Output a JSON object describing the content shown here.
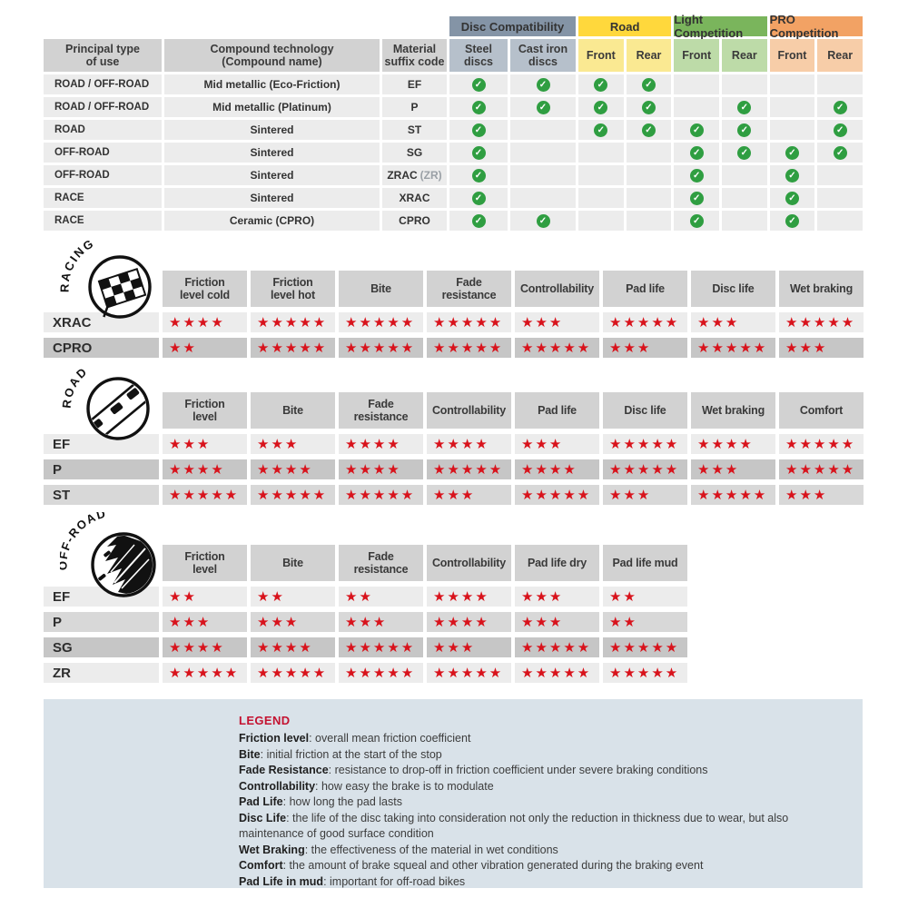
{
  "colors": {
    "header_gray": "#d2d2d2",
    "row_light": "#ececec",
    "row_medium": "#d8d8d8",
    "row_dark": "#c6c6c6",
    "check_green": "#2f9e41",
    "star_red": "#d8131c",
    "legend_bg": "#d9e2e9",
    "legend_title_red": "#c41230",
    "disc_group": "#8494a6",
    "disc_sub": "#b6c0cb",
    "road_group": "#ffd83c",
    "road_sub": "#fae992",
    "light_group": "#7ab55c",
    "light_sub": "#bddba8",
    "pro_group": "#f2a264",
    "pro_sub": "#f7cda8"
  },
  "compat_table": {
    "groups": [
      {
        "label": "Disc Compatibility",
        "span": 2,
        "color_key": "disc_group"
      },
      {
        "label": "Road",
        "span": 2,
        "color_key": "road_group"
      },
      {
        "label": "Light Competition",
        "span": 2,
        "color_key": "light_group"
      },
      {
        "label": "PRO Competition",
        "span": 2,
        "color_key": "pro_group"
      }
    ],
    "columns": [
      {
        "label": "Principal type\nof use"
      },
      {
        "label": "Compound technology\n(Compound name)"
      },
      {
        "label": "Material\nsuffix code"
      },
      {
        "label": "Steel\ndiscs",
        "tint": "disc_sub"
      },
      {
        "label": "Cast iron\ndiscs",
        "tint": "disc_sub"
      },
      {
        "label": "Front",
        "tint": "road_sub"
      },
      {
        "label": "Rear",
        "tint": "road_sub"
      },
      {
        "label": "Front",
        "tint": "light_sub"
      },
      {
        "label": "Rear",
        "tint": "light_sub"
      },
      {
        "label": "Front",
        "tint": "pro_sub"
      },
      {
        "label": "Rear",
        "tint": "pro_sub"
      }
    ],
    "rows": [
      {
        "use": "ROAD / OFF-ROAD",
        "compound": "Mid metallic (Eco-Friction)",
        "suffix": "EF",
        "suffix_note": "",
        "checks": [
          1,
          1,
          1,
          1,
          0,
          0,
          0,
          0
        ]
      },
      {
        "use": "ROAD / OFF-ROAD",
        "compound": "Mid metallic (Platinum)",
        "suffix": "P",
        "suffix_note": "",
        "checks": [
          1,
          1,
          1,
          1,
          0,
          1,
          0,
          1
        ]
      },
      {
        "use": "ROAD",
        "compound": "Sintered",
        "suffix": "ST",
        "suffix_note": "",
        "checks": [
          1,
          0,
          1,
          1,
          1,
          1,
          0,
          1
        ]
      },
      {
        "use": "OFF-ROAD",
        "compound": "Sintered",
        "suffix": "SG",
        "suffix_note": "",
        "checks": [
          1,
          0,
          0,
          0,
          1,
          1,
          1,
          1
        ]
      },
      {
        "use": "OFF-ROAD",
        "compound": "Sintered",
        "suffix": "ZRAC",
        "suffix_note": "(ZR)",
        "checks": [
          1,
          0,
          0,
          0,
          1,
          0,
          1,
          0
        ]
      },
      {
        "use": "RACE",
        "compound": "Sintered",
        "suffix": "XRAC",
        "suffix_note": "",
        "checks": [
          1,
          0,
          0,
          0,
          1,
          0,
          1,
          0
        ]
      },
      {
        "use": "RACE",
        "compound": "Ceramic (CPRO)",
        "suffix": "CPRO",
        "suffix_note": "",
        "checks": [
          1,
          1,
          0,
          0,
          1,
          0,
          1,
          0
        ]
      }
    ]
  },
  "sections": [
    {
      "id": "racing",
      "badge": "RACING",
      "icon": "racing-checkered-flag-icon",
      "columns": [
        "Friction\nlevel cold",
        "Friction\nlevel hot",
        "Bite",
        "Fade\nresistance",
        "Controllability",
        "Pad life",
        "Disc life",
        "Wet braking"
      ],
      "rows": [
        {
          "label": "XRAC",
          "shade": "light",
          "stars": [
            4,
            5,
            5,
            5,
            3,
            5,
            3,
            5
          ]
        },
        {
          "label": "CPRO",
          "shade": "dark",
          "stars": [
            2,
            5,
            5,
            5,
            5,
            3,
            5,
            3
          ]
        }
      ]
    },
    {
      "id": "road",
      "badge": "ROAD",
      "icon": "road-slick-tire-icon",
      "columns": [
        "Friction\nlevel",
        "Bite",
        "Fade\nresistance",
        "Controllability",
        "Pad life",
        "Disc life",
        "Wet braking",
        "Comfort"
      ],
      "rows": [
        {
          "label": "EF",
          "shade": "light",
          "stars": [
            3,
            3,
            4,
            4,
            3,
            5,
            4,
            5
          ]
        },
        {
          "label": "P",
          "shade": "dark",
          "stars": [
            4,
            4,
            4,
            5,
            4,
            5,
            3,
            5
          ]
        },
        {
          "label": "ST",
          "shade": "medium",
          "stars": [
            5,
            5,
            5,
            3,
            5,
            3,
            5,
            3
          ]
        }
      ]
    },
    {
      "id": "offroad",
      "badge": "OFF-ROAD",
      "icon": "offroad-knobby-tire-icon",
      "columns": [
        "Friction\nlevel",
        "Bite",
        "Fade\nresistance",
        "Controllability",
        "Pad life dry",
        "Pad life mud"
      ],
      "rows": [
        {
          "label": "EF",
          "shade": "light",
          "stars": [
            2,
            2,
            2,
            4,
            3,
            2
          ]
        },
        {
          "label": "P",
          "shade": "medium",
          "stars": [
            3,
            3,
            3,
            4,
            3,
            2
          ]
        },
        {
          "label": "SG",
          "shade": "dark",
          "stars": [
            4,
            4,
            5,
            3,
            5,
            5
          ]
        },
        {
          "label": "ZR",
          "shade": "light",
          "stars": [
            5,
            5,
            5,
            5,
            5,
            5
          ]
        }
      ]
    }
  ],
  "legend": {
    "title": "LEGEND",
    "items": [
      {
        "term": "Friction level",
        "desc": "overall mean friction coefficient"
      },
      {
        "term": "Bite",
        "desc": "initial friction at the start of the stop"
      },
      {
        "term": "Fade Resistance",
        "desc": "resistance to drop-off in friction coefficient under severe braking conditions"
      },
      {
        "term": "Controllability",
        "desc": "how easy the brake is to modulate"
      },
      {
        "term": "Pad Life",
        "desc": "how long the pad lasts"
      },
      {
        "term": "Disc Life",
        "desc": "the life of the disc taking into consideration not only the reduction in thickness due to wear, but also maintenance of good surface condition"
      },
      {
        "term": "Wet Braking",
        "desc": "the effectiveness of the material in wet conditions"
      },
      {
        "term": "Comfort",
        "desc": "the amount of brake squeal and other vibration generated during the braking event"
      },
      {
        "term": "Pad Life in mud",
        "desc": "important for off-road bikes"
      }
    ]
  }
}
